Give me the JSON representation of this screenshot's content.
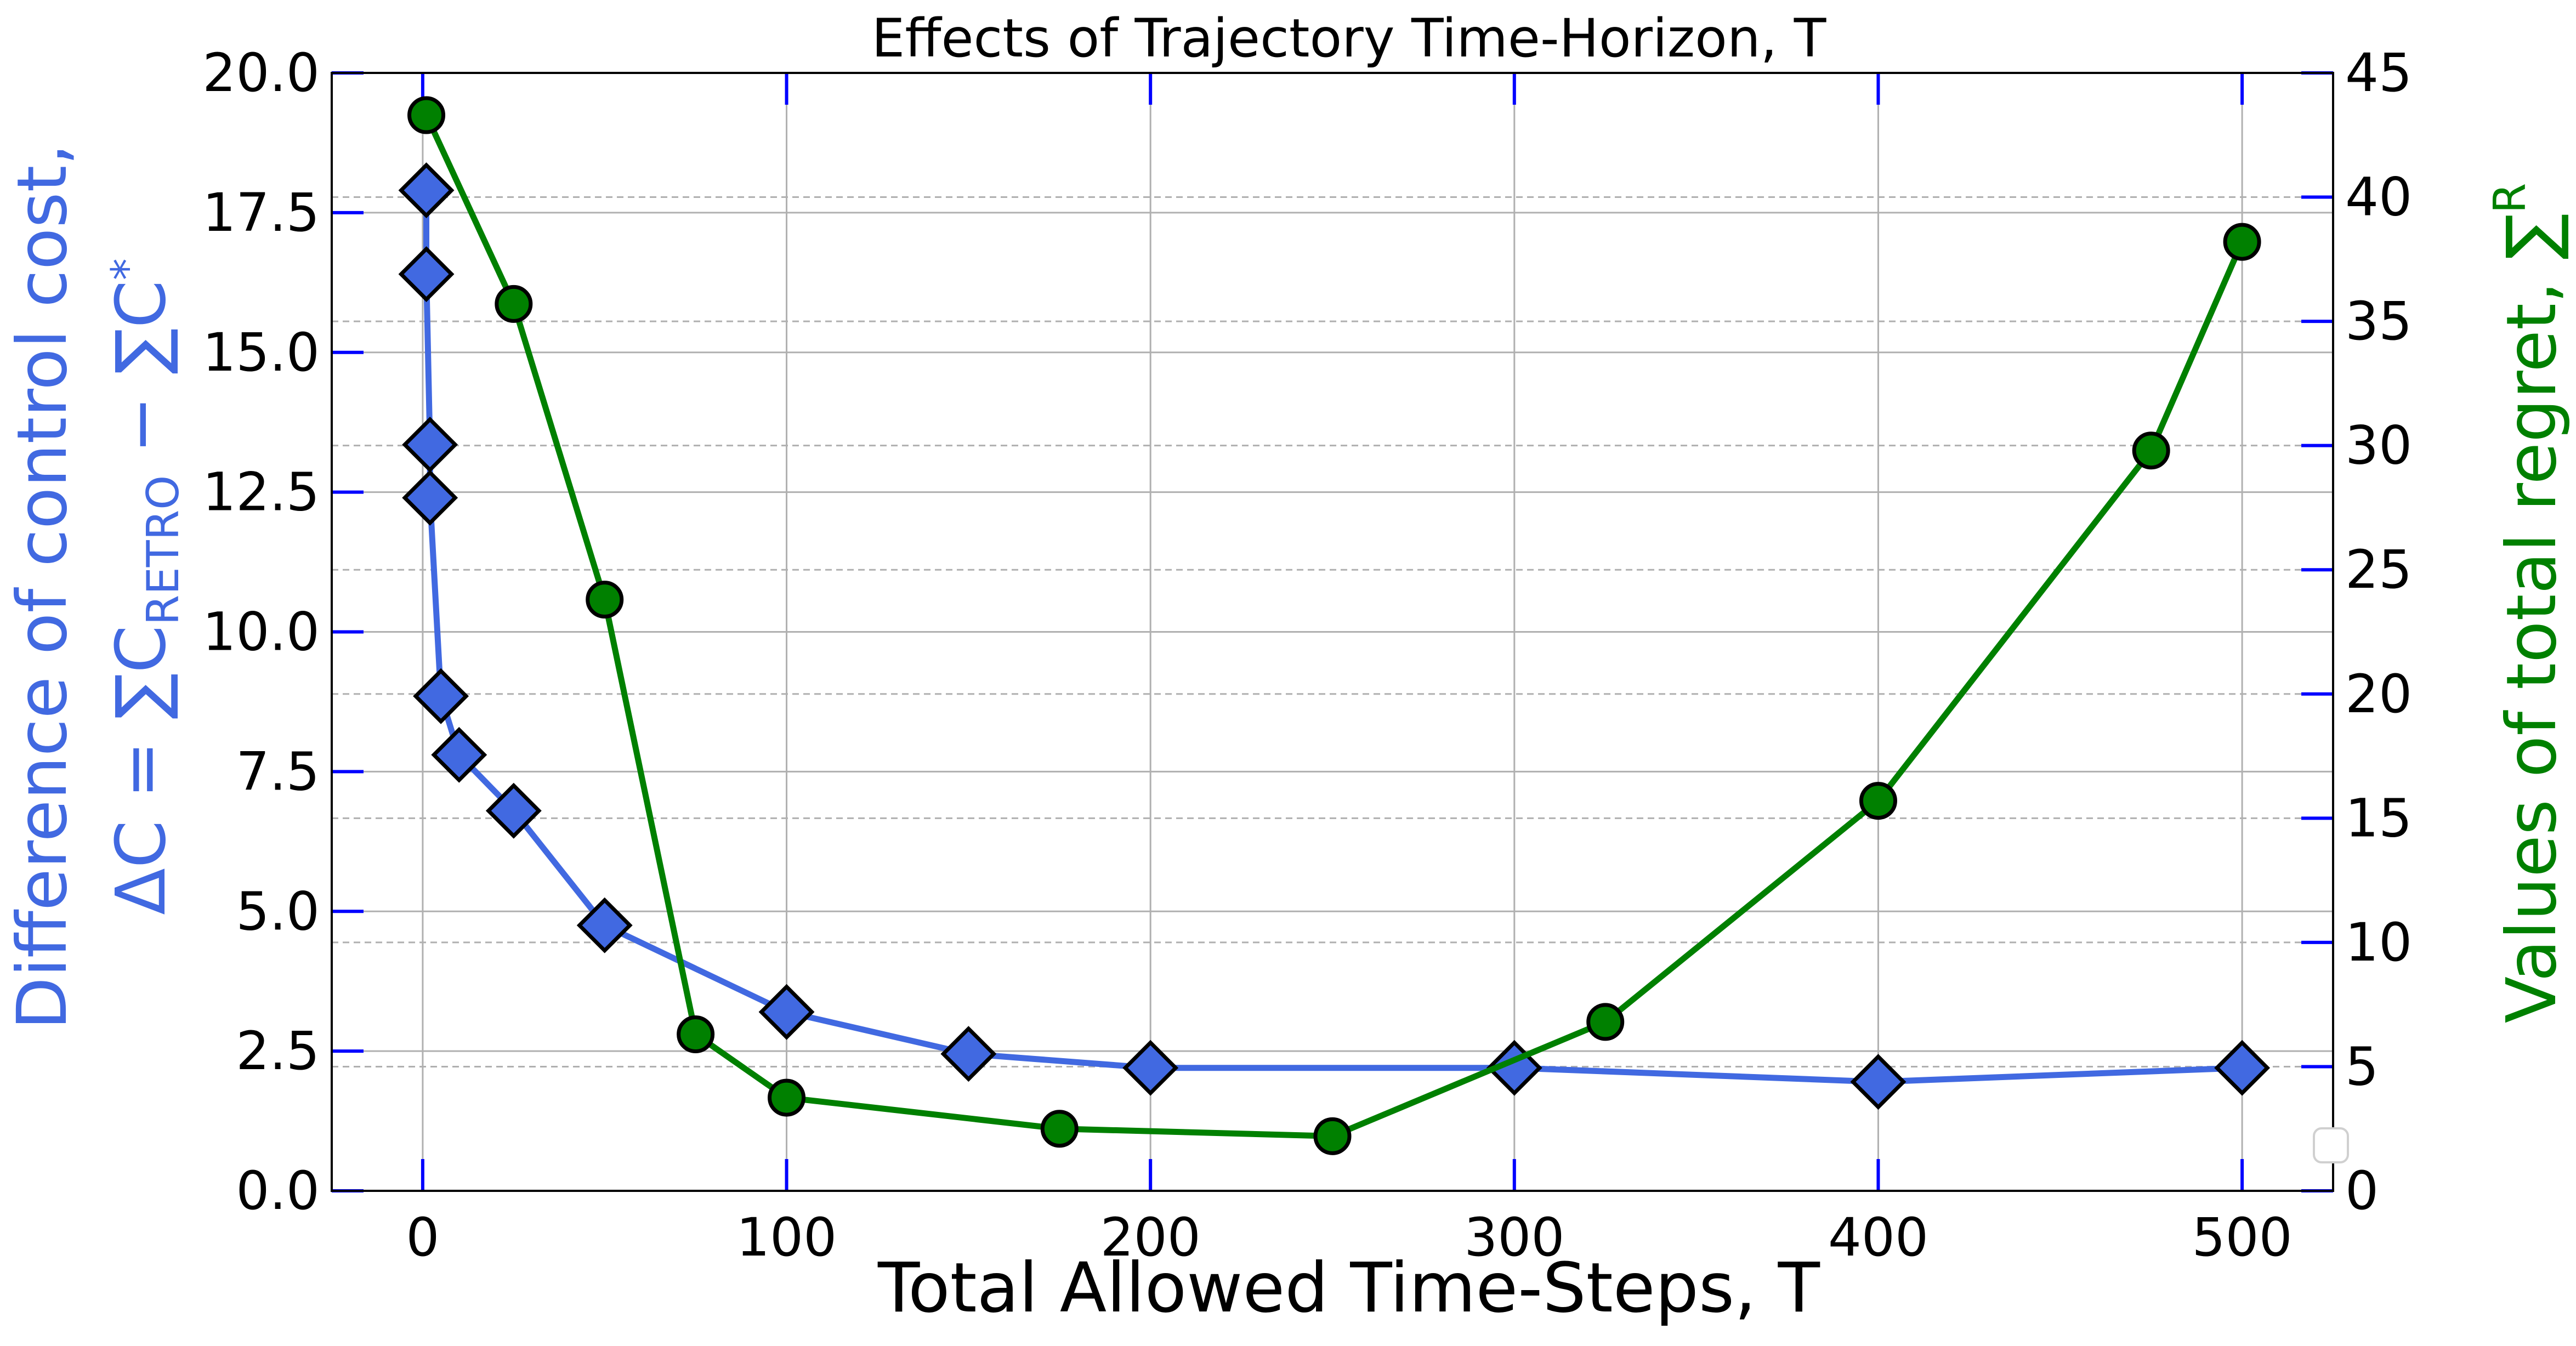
{
  "chart_data": {
    "type": "line",
    "title": "Effects of Trajectory Time-Horizon, T",
    "xlabel": "Total Allowed Time-Steps, T",
    "ylabel_left": {
      "line1": "Difference of control cost,",
      "line2_prefix": "ΔC = ∑C",
      "line2_sub": "RETRO",
      "line2_mid": " − ∑C",
      "line2_sub2": "*"
    },
    "ylabel_right": {
      "text": "Values of total regret, ∑",
      "sub": "R"
    },
    "xlim": [
      -25,
      525
    ],
    "ylim_left": [
      0,
      20
    ],
    "ylim_right": [
      0,
      45
    ],
    "x_ticks": [
      0,
      100,
      200,
      300,
      400,
      500
    ],
    "x_tick_labels": [
      "0",
      "100",
      "200",
      "300",
      "400",
      "500"
    ],
    "y_left_ticks": [
      0,
      2.5,
      5,
      7.5,
      10,
      12.5,
      15,
      17.5,
      20
    ],
    "y_left_tick_labels": [
      "0.0",
      "2.5",
      "5.0",
      "7.5",
      "10.0",
      "12.5",
      "15.0",
      "17.5",
      "20.0"
    ],
    "y_right_ticks": [
      0,
      5,
      10,
      15,
      20,
      25,
      30,
      35,
      40,
      45
    ],
    "y_right_tick_labels": [
      "0",
      "5",
      "10",
      "15",
      "20",
      "25",
      "30",
      "35",
      "40",
      "45"
    ],
    "grid": true,
    "legend": "bottom-right (empty)",
    "series": [
      {
        "axis": "left",
        "color": "#4169e1",
        "marker": "diamond",
        "x": [
          1,
          1,
          2,
          2,
          5,
          10,
          25,
          50,
          100,
          150,
          200,
          300,
          400,
          500
        ],
        "y": [
          17.9,
          16.4,
          13.35,
          12.4,
          8.85,
          7.8,
          6.8,
          4.75,
          3.2,
          2.45,
          2.2,
          2.2,
          1.95,
          2.2
        ]
      },
      {
        "axis": "right",
        "color": "#008000",
        "marker": "circle",
        "x": [
          1,
          25,
          50,
          75,
          100,
          175,
          250,
          325,
          400,
          475,
          500
        ],
        "y": [
          43.3,
          35.7,
          23.8,
          6.3,
          3.75,
          2.5,
          2.2,
          6.8,
          15.7,
          29.8,
          38.2
        ]
      }
    ]
  }
}
